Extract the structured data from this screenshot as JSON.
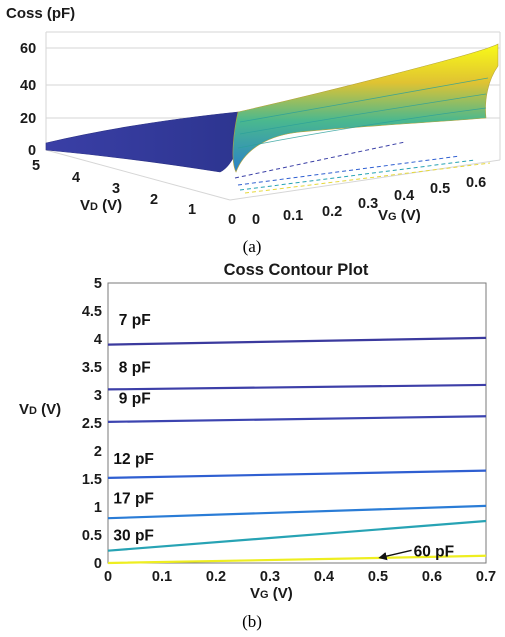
{
  "chart_data": [
    {
      "type": "surface",
      "panel_label": "(a)",
      "zlabel": "Coss (pF)",
      "xlabel_main": "V",
      "xlabel_sub": "D",
      "xlabel_unit": " (V)",
      "ylabel_main": "V",
      "ylabel_sub": "G",
      "ylabel_unit": " (V)",
      "z_ticks": [
        "0",
        "20",
        "40",
        "60"
      ],
      "vd_ticks": [
        "5",
        "4",
        "3",
        "2",
        "1",
        "0"
      ],
      "vg_ticks": [
        "0",
        "0.1",
        "0.2",
        "0.3",
        "0.4",
        "0.5",
        "0.6"
      ],
      "xlim": [
        0,
        5
      ],
      "ylim": [
        0,
        0.7
      ],
      "zlim": [
        0,
        65
      ],
      "colormap": "parula",
      "grid": true
    },
    {
      "type": "contour",
      "panel_label": "(b)",
      "title": "Coss Contour Plot",
      "xlabel_main": "V",
      "xlabel_sub": "G",
      "xlabel_unit": " (V)",
      "ylabel_main": "V",
      "ylabel_sub": "D",
      "ylabel_unit": " (V)",
      "xlim": [
        0,
        0.7
      ],
      "ylim": [
        0,
        5
      ],
      "x_ticks": [
        "0",
        "0.1",
        "0.2",
        "0.3",
        "0.4",
        "0.5",
        "0.6",
        "0.7"
      ],
      "y_ticks": [
        "0",
        "0.5",
        "1",
        "1.5",
        "2",
        "2.5",
        "3",
        "3.5",
        "4",
        "4.5",
        "5"
      ],
      "grid": false,
      "contours": [
        {
          "level": "7 pF",
          "color": "#3b3a9e",
          "x": [
            0,
            0.7
          ],
          "y": [
            3.9,
            4.02
          ],
          "label_at": [
            0.02,
            4.25
          ]
        },
        {
          "level": "8 pF",
          "color": "#3d3fa8",
          "x": [
            0,
            0.7
          ],
          "y": [
            3.1,
            3.18
          ],
          "label_at": [
            0.02,
            3.4
          ]
        },
        {
          "level": "9 pF",
          "color": "#3c44b0",
          "x": [
            0,
            0.7
          ],
          "y": [
            2.52,
            2.62
          ],
          "label_at": [
            0.02,
            2.85
          ]
        },
        {
          "level": "12 pF",
          "color": "#2f5fd1",
          "x": [
            0,
            0.7
          ],
          "y": [
            1.52,
            1.65
          ],
          "label_at": [
            0.01,
            1.77
          ]
        },
        {
          "level": "17 pF",
          "color": "#2a7cd6",
          "x": [
            0,
            0.7
          ],
          "y": [
            0.8,
            1.02
          ],
          "label_at": [
            0.01,
            1.06
          ]
        },
        {
          "level": "30 pF",
          "color": "#27a3b4",
          "x": [
            0,
            0.7
          ],
          "y": [
            0.22,
            0.75
          ],
          "label_at": [
            0.01,
            0.4
          ]
        },
        {
          "level": "60 pF",
          "color": "#eeee20",
          "x": [
            0,
            0.45,
            0.7
          ],
          "y": [
            0.0,
            0.08,
            0.13
          ],
          "label_at": [
            0.54,
            0.12
          ],
          "arrow_to": [
            0.5,
            0.06
          ]
        }
      ]
    }
  ]
}
